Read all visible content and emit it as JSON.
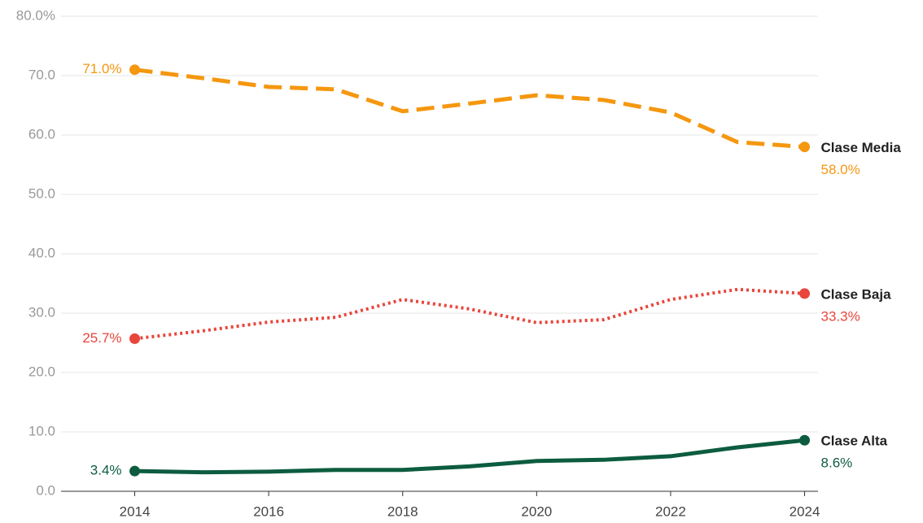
{
  "chart_data": {
    "type": "line",
    "x": [
      2014,
      2015,
      2016,
      2017,
      2018,
      2019,
      2020,
      2021,
      2022,
      2023,
      2024
    ],
    "xlim": [
      2012.9,
      2024.2
    ],
    "xticks": [
      2014,
      2016,
      2018,
      2020,
      2022,
      2024
    ],
    "ylim": [
      0,
      80
    ],
    "yticks": [
      {
        "value": 0,
        "label": "0.0"
      },
      {
        "value": 10,
        "label": "10.0"
      },
      {
        "value": 20,
        "label": "20.0"
      },
      {
        "value": 30,
        "label": "30.0"
      },
      {
        "value": 40,
        "label": "40.0"
      },
      {
        "value": 50,
        "label": "50.0"
      },
      {
        "value": 60,
        "label": "60.0"
      },
      {
        "value": 70,
        "label": "70.0"
      },
      {
        "value": 80,
        "label": "80.0%"
      }
    ],
    "grid": true,
    "series": [
      {
        "name": "Clase Media",
        "color": "#f5970f",
        "dash": "dashed",
        "values": [
          71.0,
          69.6,
          68.1,
          67.7,
          64.0,
          65.3,
          66.7,
          65.9,
          63.8,
          58.8,
          58.0
        ],
        "value_labels": [
          "71.0%",
          null,
          null,
          null,
          null,
          null,
          null,
          null,
          null,
          null,
          "58.0%"
        ]
      },
      {
        "name": "Clase Baja",
        "color": "#e8453c",
        "dash": "dotted",
        "values": [
          25.7,
          27.0,
          28.5,
          29.3,
          32.3,
          30.7,
          28.4,
          28.9,
          32.3,
          34.0,
          33.3
        ],
        "value_labels": [
          "25.7%",
          null,
          null,
          null,
          null,
          null,
          null,
          null,
          null,
          null,
          "33.3%"
        ]
      },
      {
        "name": "Clase Alta",
        "color": "#0d5c3f",
        "dash": "solid",
        "values": [
          3.4,
          3.2,
          3.3,
          3.6,
          3.6,
          4.2,
          5.1,
          5.3,
          5.9,
          7.4,
          8.6
        ],
        "value_labels": [
          "3.4%",
          null,
          null,
          null,
          null,
          null,
          null,
          null,
          null,
          null,
          "8.6%"
        ]
      }
    ]
  }
}
